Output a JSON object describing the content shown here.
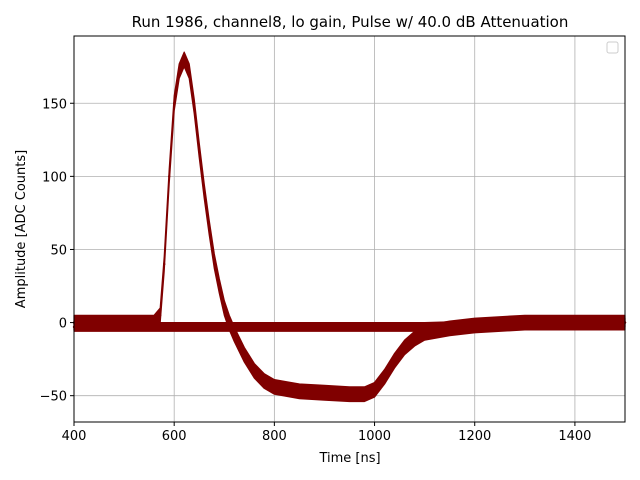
{
  "chart_data": {
    "type": "scatter",
    "title": "Run 1986, channel8, lo gain, Pulse w/ 40.0 dB Attenuation",
    "xlabel": "Time [ns]",
    "ylabel": "Amplitude [ADC Counts]",
    "xlim": [
      400,
      1500
    ],
    "ylim": [
      -68,
      196
    ],
    "xticks": [
      400,
      600,
      800,
      1000,
      1200,
      1400
    ],
    "yticks": [
      -50,
      0,
      50,
      100,
      150
    ],
    "ytick_labels": [
      "−50",
      "0",
      "50",
      "100",
      "150"
    ],
    "grid": true,
    "legend": {
      "placement": "top-right",
      "entries": []
    },
    "color": "#800000",
    "series": [
      {
        "band_halfwidth": 5,
        "x": [
          400,
          500,
          560,
          572,
          580,
          590,
          600,
          610,
          620,
          630,
          640,
          650,
          660,
          670,
          680,
          690,
          700,
          710,
          720,
          740,
          760,
          780,
          800,
          850,
          900,
          950,
          980,
          1000,
          1020,
          1040,
          1060,
          1080,
          1100,
          1150,
          1200,
          1300,
          1400,
          1500
        ],
        "values": [
          0,
          0,
          0,
          5,
          40,
          100,
          150,
          172,
          180,
          172,
          148,
          118,
          90,
          65,
          42,
          25,
          10,
          0,
          -8,
          -22,
          -33,
          -40,
          -44,
          -47,
          -48,
          -49,
          -49,
          -46,
          -37,
          -26,
          -17,
          -11,
          -7,
          -4,
          -2,
          0,
          0,
          0
        ]
      },
      {
        "band_halfwidth": 3,
        "x": [
          400,
          500,
          560,
          600,
          700,
          800,
          900,
          1000,
          1100,
          1200,
          1300,
          1400,
          1500
        ],
        "values": [
          -3,
          -3,
          -3,
          -3,
          -3,
          -3,
          -3,
          -3,
          -3,
          -2,
          -1,
          0,
          0
        ]
      }
    ]
  }
}
